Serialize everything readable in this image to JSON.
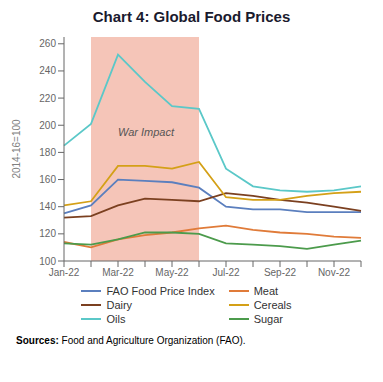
{
  "chart_data": {
    "type": "line",
    "title": "Chart 4: Global Food Prices",
    "ylabel": "2014-16=100",
    "source": "Sources: Food and Agriculture Organization (FAO).",
    "categories": [
      "Jan-22",
      null,
      "Mar-22",
      null,
      "May-22",
      null,
      "Jul-22",
      null,
      "Sep-22",
      null,
      "Nov-22",
      null
    ],
    "series": [
      {
        "name": "FAO Food Price Index",
        "color": "#5b7fbe",
        "values": [
          135,
          141,
          160,
          159,
          158,
          154,
          140,
          138,
          138,
          136,
          136,
          136
        ]
      },
      {
        "name": "Dairy",
        "color": "#7b4020",
        "values": [
          132,
          133,
          141,
          146,
          145,
          144,
          150,
          148,
          145,
          143,
          140,
          137
        ]
      },
      {
        "name": "Oils",
        "color": "#5bc8c8",
        "values": [
          185,
          201,
          252,
          232,
          214,
          212,
          168,
          155,
          152,
          151,
          152,
          155
        ]
      },
      {
        "name": "Meat",
        "color": "#e07b39",
        "values": [
          114,
          110,
          116,
          119,
          121,
          124,
          126,
          123,
          121,
          120,
          118,
          117
        ]
      },
      {
        "name": "Cereals",
        "color": "#d4a017",
        "values": [
          141,
          144,
          170,
          170,
          168,
          173,
          147,
          145,
          145,
          148,
          150,
          151
        ]
      },
      {
        "name": "Sugar",
        "color": "#4c9b4c",
        "values": [
          113,
          112,
          116,
          121,
          121,
          120,
          113,
          112,
          111,
          109,
          112,
          115
        ]
      }
    ],
    "ylim": [
      100,
      265
    ],
    "yticks": [
      100,
      120,
      140,
      160,
      180,
      200,
      220,
      240,
      260
    ],
    "grid": false,
    "legend": "bottom",
    "shaded_region": {
      "start": 1,
      "end": 5,
      "color": "#f5c5b8"
    },
    "annotations": [
      {
        "text": "War Impact",
        "x": 2,
        "y": 192
      }
    ]
  }
}
